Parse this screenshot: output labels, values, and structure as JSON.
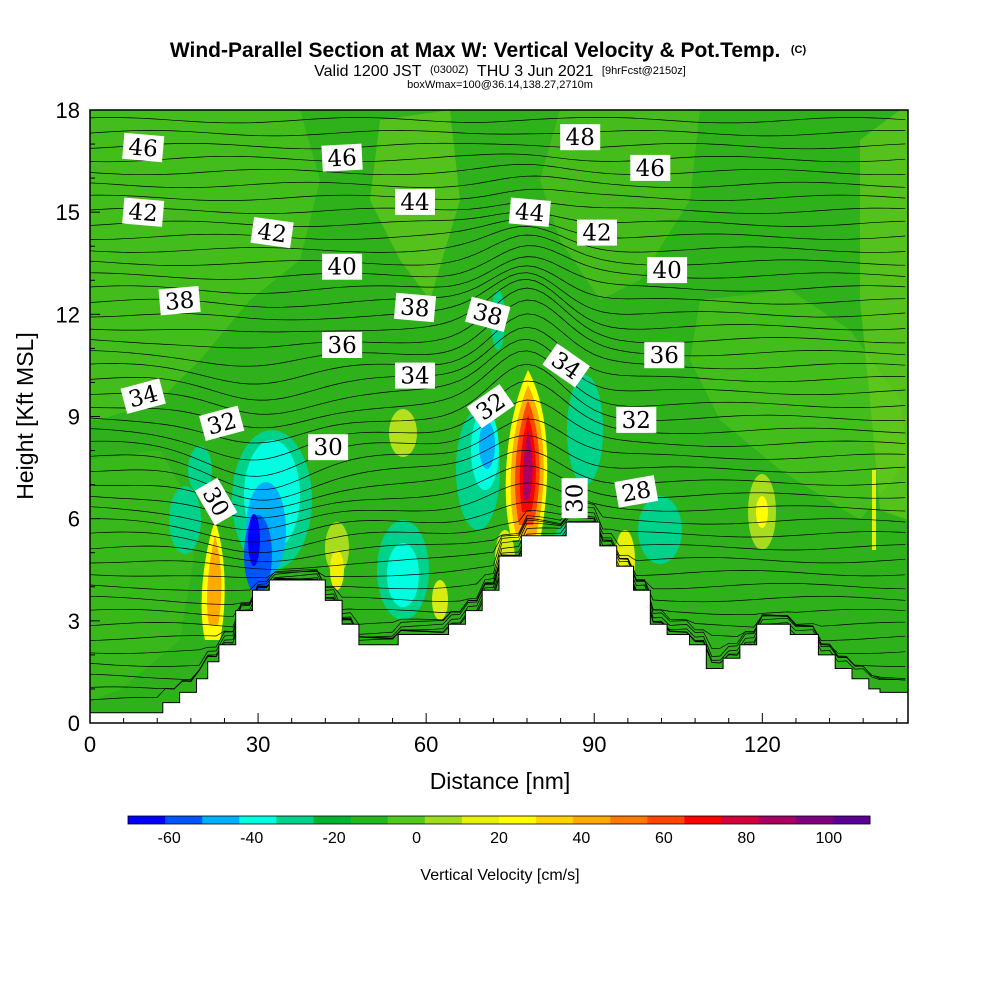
{
  "title": {
    "main": "Wind-Parallel Section at Max W: Vertical Velocity & Pot.Temp.",
    "copyright": "(C)",
    "valid_prefix": "Valid 1200 JST",
    "valid_utc": "(0300Z)",
    "valid_date": "THU 3 Jun 2021",
    "forecast": "[9hrFcst@2150z]",
    "box_info": "boxWmax=100@36.14,138.27,2710m"
  },
  "chart_data": {
    "type": "contour",
    "xlabel": "Distance [nm]",
    "ylabel": "Height [Kft MSL]",
    "xlim": [
      0,
      146
    ],
    "ylim": [
      0,
      18
    ],
    "xticks": [
      0,
      30,
      60,
      90,
      120
    ],
    "yticks": [
      0,
      3,
      6,
      9,
      12,
      15,
      18
    ],
    "terrain_profile": [
      [
        0,
        0.3
      ],
      [
        13,
        0.3
      ],
      [
        13,
        0.6
      ],
      [
        16,
        0.6
      ],
      [
        16,
        0.9
      ],
      [
        19,
        0.9
      ],
      [
        19,
        1.3
      ],
      [
        21,
        1.3
      ],
      [
        21,
        1.8
      ],
      [
        23,
        1.8
      ],
      [
        23,
        2.3
      ],
      [
        26,
        2.3
      ],
      [
        26,
        3.3
      ],
      [
        29,
        3.3
      ],
      [
        29,
        3.9
      ],
      [
        32,
        3.9
      ],
      [
        32,
        4.2
      ],
      [
        42,
        4.2
      ],
      [
        42,
        3.6
      ],
      [
        45,
        3.6
      ],
      [
        45,
        2.9
      ],
      [
        48,
        2.9
      ],
      [
        48,
        2.3
      ],
      [
        55,
        2.3
      ],
      [
        55,
        2.6
      ],
      [
        64,
        2.6
      ],
      [
        64,
        2.9
      ],
      [
        67,
        2.9
      ],
      [
        67,
        3.3
      ],
      [
        70,
        3.3
      ],
      [
        70,
        3.9
      ],
      [
        73,
        3.9
      ],
      [
        73,
        4.9
      ],
      [
        77,
        4.9
      ],
      [
        77,
        5.5
      ],
      [
        85,
        5.5
      ],
      [
        85,
        5.9
      ],
      [
        91,
        5.9
      ],
      [
        91,
        5.2
      ],
      [
        94,
        5.2
      ],
      [
        94,
        4.6
      ],
      [
        97,
        4.6
      ],
      [
        97,
        3.9
      ],
      [
        100,
        3.9
      ],
      [
        100,
        2.9
      ],
      [
        103,
        2.9
      ],
      [
        103,
        2.6
      ],
      [
        107,
        2.6
      ],
      [
        107,
        2.3
      ],
      [
        110,
        2.3
      ],
      [
        110,
        1.6
      ],
      [
        113,
        1.6
      ],
      [
        113,
        1.9
      ],
      [
        116,
        1.9
      ],
      [
        116,
        2.3
      ],
      [
        119,
        2.3
      ],
      [
        119,
        2.9
      ],
      [
        125,
        2.9
      ],
      [
        125,
        2.6
      ],
      [
        130,
        2.6
      ],
      [
        130,
        2.0
      ],
      [
        133,
        2.0
      ],
      [
        133,
        1.6
      ],
      [
        136,
        1.6
      ],
      [
        136,
        1.3
      ],
      [
        139,
        1.3
      ],
      [
        139,
        1.0
      ],
      [
        141,
        1.0
      ],
      [
        141,
        0.9
      ],
      [
        146,
        0.9
      ]
    ],
    "theta_contour_labels": [
      {
        "text": "46",
        "x": 9.5,
        "y": 16.9,
        "angle": 5
      },
      {
        "text": "46",
        "x": 45,
        "y": 16.6,
        "angle": -3
      },
      {
        "text": "48",
        "x": 87.5,
        "y": 17.2,
        "angle": 0
      },
      {
        "text": "46",
        "x": 100,
        "y": 16.3,
        "angle": 0
      },
      {
        "text": "42",
        "x": 9.5,
        "y": 15.0,
        "angle": 5
      },
      {
        "text": "42",
        "x": 32.5,
        "y": 14.4,
        "angle": 8
      },
      {
        "text": "44",
        "x": 58,
        "y": 15.3,
        "angle": 0
      },
      {
        "text": "44",
        "x": 78.5,
        "y": 15.0,
        "angle": 5
      },
      {
        "text": "42",
        "x": 90.5,
        "y": 14.4,
        "angle": 0
      },
      {
        "text": "40",
        "x": 45,
        "y": 13.4,
        "angle": 0
      },
      {
        "text": "40",
        "x": 103,
        "y": 13.3,
        "angle": 0
      },
      {
        "text": "38",
        "x": 16,
        "y": 12.4,
        "angle": -5
      },
      {
        "text": "38",
        "x": 58,
        "y": 12.2,
        "angle": 5
      },
      {
        "text": "38",
        "x": 71,
        "y": 12.0,
        "angle": 15
      },
      {
        "text": "36",
        "x": 45,
        "y": 11.1,
        "angle": 0
      },
      {
        "text": "36",
        "x": 102.5,
        "y": 10.8,
        "angle": 0
      },
      {
        "text": "34",
        "x": 9.5,
        "y": 9.6,
        "angle": -15
      },
      {
        "text": "34",
        "x": 58,
        "y": 10.2,
        "angle": 0
      },
      {
        "text": "34",
        "x": 85,
        "y": 10.5,
        "angle": 35
      },
      {
        "text": "32",
        "x": 23.5,
        "y": 8.8,
        "angle": -15
      },
      {
        "text": "32",
        "x": 71.5,
        "y": 9.3,
        "angle": -35
      },
      {
        "text": "32",
        "x": 97.5,
        "y": 8.9,
        "angle": 0
      },
      {
        "text": "30",
        "x": 42.5,
        "y": 8.1,
        "angle": 0
      },
      {
        "text": "30",
        "x": 22.5,
        "y": 6.5,
        "angle": 60
      },
      {
        "text": "30",
        "x": 86.5,
        "y": 6.6,
        "angle": -90
      },
      {
        "text": "28",
        "x": 97.5,
        "y": 6.8,
        "angle": -10
      }
    ],
    "vertical_velocity_features": [
      {
        "x": 25,
        "y": 4.5,
        "value": 40
      },
      {
        "x": 29,
        "y": 5.5,
        "value": -60
      },
      {
        "x": 31,
        "y": 7.5,
        "value": -30
      },
      {
        "x": 55,
        "y": 4.5,
        "value": -20
      },
      {
        "x": 63,
        "y": 8.5,
        "value": 20
      },
      {
        "x": 70,
        "y": 8.0,
        "value": -30
      },
      {
        "x": 78,
        "y": 8.5,
        "value": 100
      },
      {
        "x": 77,
        "y": 6.0,
        "value": 60
      },
      {
        "x": 120,
        "y": 6.5,
        "value": 40
      }
    ]
  },
  "colorbar": {
    "label": "Vertical Velocity [cm/s]",
    "tick_labels": [
      "-60",
      "-40",
      "-20",
      "0",
      "20",
      "40",
      "60",
      "80",
      "100"
    ],
    "colors": [
      "#0000ff",
      "#0055ff",
      "#00b0ff",
      "#00ffe0",
      "#00d28c",
      "#00b432",
      "#22b81e",
      "#50c81e",
      "#a0dc1e",
      "#e6f00a",
      "#ffff00",
      "#ffd200",
      "#ffaa00",
      "#ff7800",
      "#ff4600",
      "#ff0000",
      "#d2003c",
      "#aa0064",
      "#800080",
      "#5a0096"
    ]
  }
}
